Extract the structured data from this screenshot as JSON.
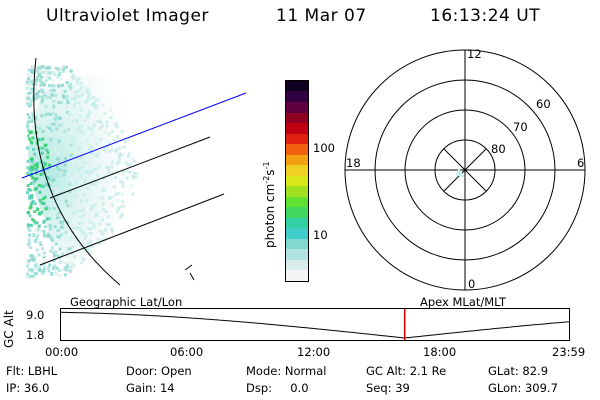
{
  "header": {
    "instrument": "Ultraviolet Imager",
    "date": "11 Mar 07",
    "time": "16:13:24 UT"
  },
  "colorbar": {
    "unit_label": "photon cm",
    "unit_exp1": "-2",
    "unit_s": "s",
    "unit_exp2": "-1",
    "ticks": [
      {
        "label": "100",
        "value": 100
      },
      {
        "label": "10",
        "value": 10
      }
    ],
    "colors": [
      "#f4f4f4",
      "#d8ecec",
      "#b0e4e0",
      "#80d8d0",
      "#40ccc8",
      "#30d0a0",
      "#40d860",
      "#60e030",
      "#a0e020",
      "#d8e818",
      "#f0d020",
      "#f0a010",
      "#f06010",
      "#e02010",
      "#c00010",
      "#900020",
      "#600040",
      "#300040",
      "#100020"
    ]
  },
  "polar": {
    "labels": {
      "top": "12",
      "bottom": "0",
      "left": "18",
      "right": "6"
    },
    "lat_labels": [
      {
        "label": "60",
        "value": 60
      },
      {
        "label": "70",
        "value": 70
      },
      {
        "label": "80",
        "value": 80
      }
    ]
  },
  "timeline": {
    "y_axis_label": "GC Alt",
    "y_ticks": [
      "9.0",
      "1.8"
    ],
    "left_title": "Geographic Lat/Lon",
    "right_title": "Apex MLat/MLT",
    "x_ticks": [
      "00:00",
      "06:00",
      "12:00",
      "18:00",
      "23:59"
    ],
    "current_time_hours": 16.22
  },
  "status": {
    "filter": "Flt: LBHL",
    "door": "Door: Open",
    "mode": "Mode: Normal",
    "gc_alt": "GC Alt: 2.1 Re",
    "glat": "GLat:  82.9",
    "ip": "IP: 36.0",
    "gain": "Gain: 14",
    "dsp": "Dsp:     0.0",
    "seq": "Seq: 39",
    "glon": "GLon: 309.7"
  }
}
